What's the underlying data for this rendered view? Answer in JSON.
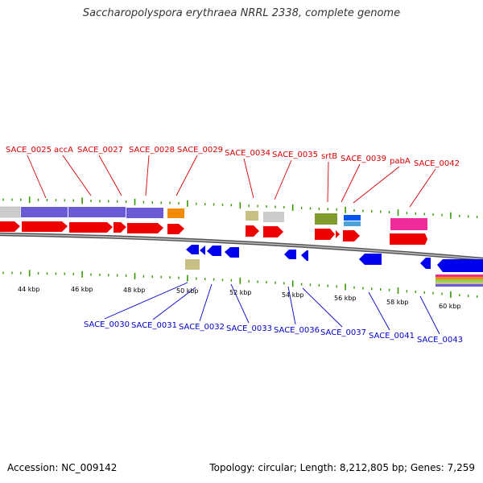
{
  "title": "Saccharopolyspora erythraea NRRL 2338, complete genome",
  "footer": {
    "accession": "Accession: NC_009142",
    "summary": "Topology: circular; Length: 8,212,805 bp; Genes: 7,259"
  },
  "colors": {
    "forward_label": "#d40000",
    "reverse_label": "#0000cc",
    "cds_red": "#ee0000",
    "cds_blue": "#0000ee",
    "tick_green": "#339900",
    "backbone": "#999999"
  },
  "top_labels": [
    "SACE_0025",
    "accA",
    "SACE_0027",
    "SACE_0028",
    "SACE_0029",
    "SACE_0034",
    "SACE_0035",
    "srtB",
    "SACE_0039",
    "pabA",
    "SACE_0042"
  ],
  "bottom_labels": [
    "SACE_0030",
    "SACE_0031",
    "SACE_0032",
    "SACE_0033",
    "SACE_0036",
    "SACE_0037",
    "SACE_0041",
    "SACE_0043"
  ],
  "kbp_ticks": [
    "44 kbp",
    "46 kbp",
    "48 kbp",
    "50 kbp",
    "52 kbp",
    "54 kbp",
    "56 kbp",
    "58 kbp",
    "60 kbp"
  ]
}
